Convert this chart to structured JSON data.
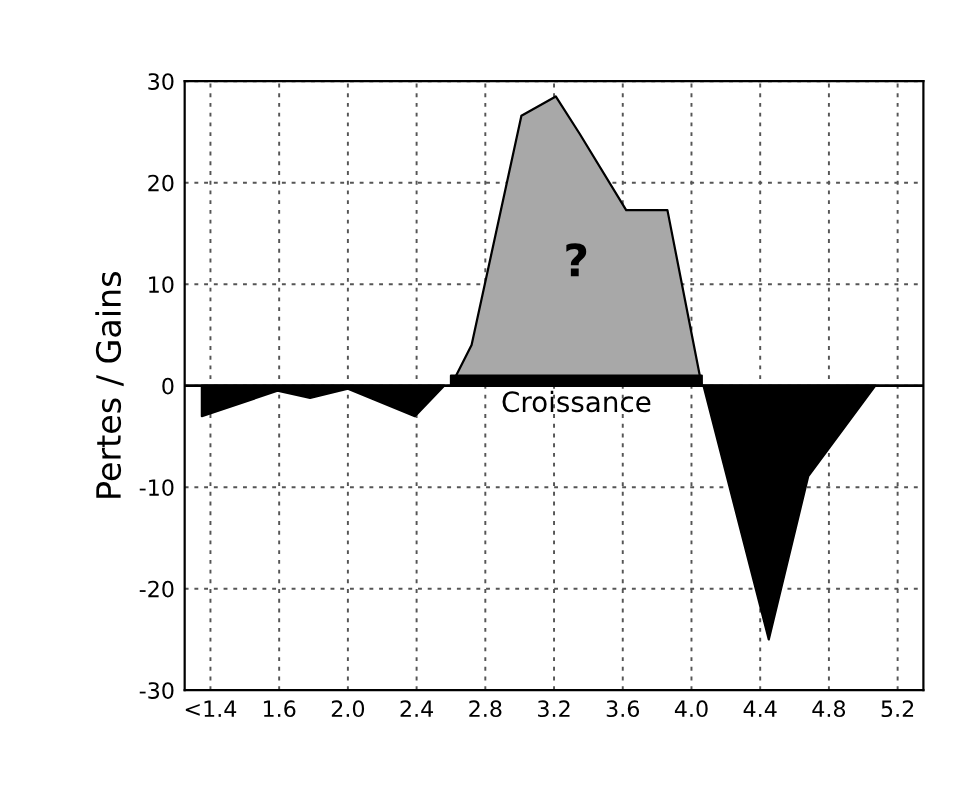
{
  "chart_data": {
    "type": "area",
    "ylabel": "Pertes / Gains",
    "series": [
      {
        "color": "#000000",
        "x": [
          1.15,
          1.59,
          1.78,
          2.0,
          2.39,
          2.56
        ],
        "values": [
          -3,
          -0.5,
          -1.2,
          -0.3,
          -3,
          0
        ]
      },
      {
        "color": "#a8a8a8",
        "x": [
          2.6,
          2.72,
          3.01,
          3.21,
          3.35,
          3.62,
          3.86,
          4.06
        ],
        "values": [
          0,
          4,
          26.6,
          28.5,
          24.8,
          17.3,
          17.3,
          0
        ]
      },
      {
        "color": "#000000",
        "name": "Croissance",
        "x": [
          2.6,
          4.06
        ],
        "values": [
          1,
          1
        ]
      },
      {
        "color": "#000000",
        "x": [
          4.07,
          4.45,
          4.68,
          5.07
        ],
        "values": [
          0,
          -25,
          -8.9,
          0
        ]
      }
    ],
    "annotations": [
      "?"
    ],
    "xlim": [
      1.05,
      5.35
    ],
    "xticks": [
      {
        "value": 1.2,
        "label": "<1.4"
      },
      1.6,
      {
        "value": 2.0,
        "label": "2.0"
      },
      2.4,
      2.8,
      3.2,
      3.6,
      {
        "value": 4.0,
        "label": "4.0"
      },
      4.4,
      4.8,
      5.2
    ],
    "ylim": [
      -30,
      30
    ],
    "yticks": [
      -30,
      -20,
      -10,
      0,
      10,
      20,
      30
    ],
    "ref_lines": [
      {
        "axis": "y",
        "value": 0,
        "color": "#000000"
      }
    ],
    "grid": true,
    "legend": false
  }
}
